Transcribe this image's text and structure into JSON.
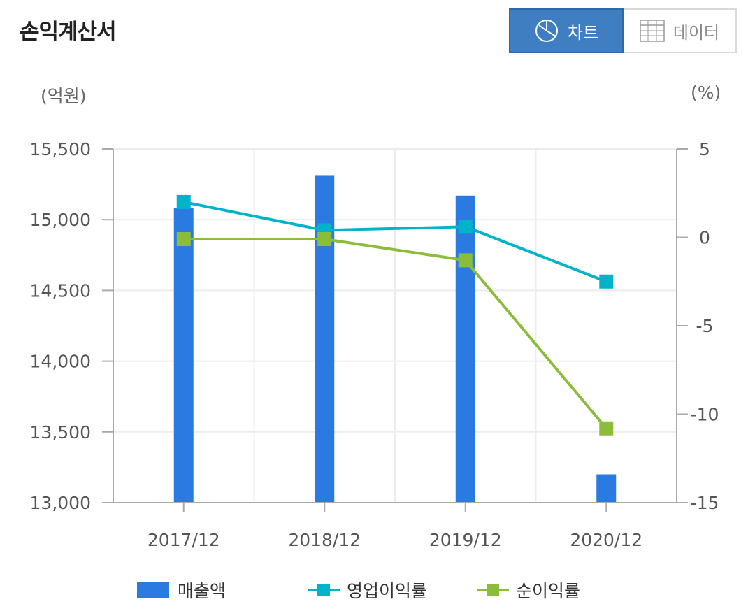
{
  "page": {
    "title": "손익계산서"
  },
  "view_toggle": {
    "chart_label": "차트",
    "data_label": "데이터",
    "chart_icon": "pie-chart-icon",
    "data_icon": "table-grid-icon",
    "active": "chart"
  },
  "units": {
    "left": "(억원)",
    "right": "(%)"
  },
  "colors": {
    "bar": "#2a7ae2",
    "operating_margin": "#00b3c9",
    "net_margin": "#8bbd3b",
    "toggle_active": "#3f7fc1"
  },
  "chart_data": {
    "type": "bar",
    "categories": [
      "2017/12",
      "2018/12",
      "2019/12",
      "2020/12"
    ],
    "y_left": {
      "ylim": [
        13000,
        15500
      ],
      "ticks": [
        13000,
        13500,
        14000,
        14500,
        15000,
        15500
      ],
      "tick_labels": [
        "13,000",
        "13,500",
        "14,000",
        "14,500",
        "15,000",
        "15,500"
      ],
      "label": "(억원)"
    },
    "y_right": {
      "ylim": [
        -15,
        5
      ],
      "ticks": [
        -15,
        -10,
        -5,
        0,
        5
      ],
      "tick_labels": [
        "-15",
        "-10",
        "-5",
        "0",
        "5"
      ],
      "label": "(%)"
    },
    "series": [
      {
        "name": "매출액",
        "type": "bar",
        "axis": "left",
        "values": [
          15080,
          15310,
          15170,
          13200
        ]
      },
      {
        "name": "영업이익률",
        "type": "line",
        "axis": "right",
        "values": [
          2.0,
          0.4,
          0.6,
          -2.5
        ]
      },
      {
        "name": "순이익률",
        "type": "line",
        "axis": "right",
        "values": [
          -0.1,
          -0.1,
          -1.3,
          -10.8
        ]
      }
    ],
    "grid": true,
    "legend_position": "bottom"
  }
}
